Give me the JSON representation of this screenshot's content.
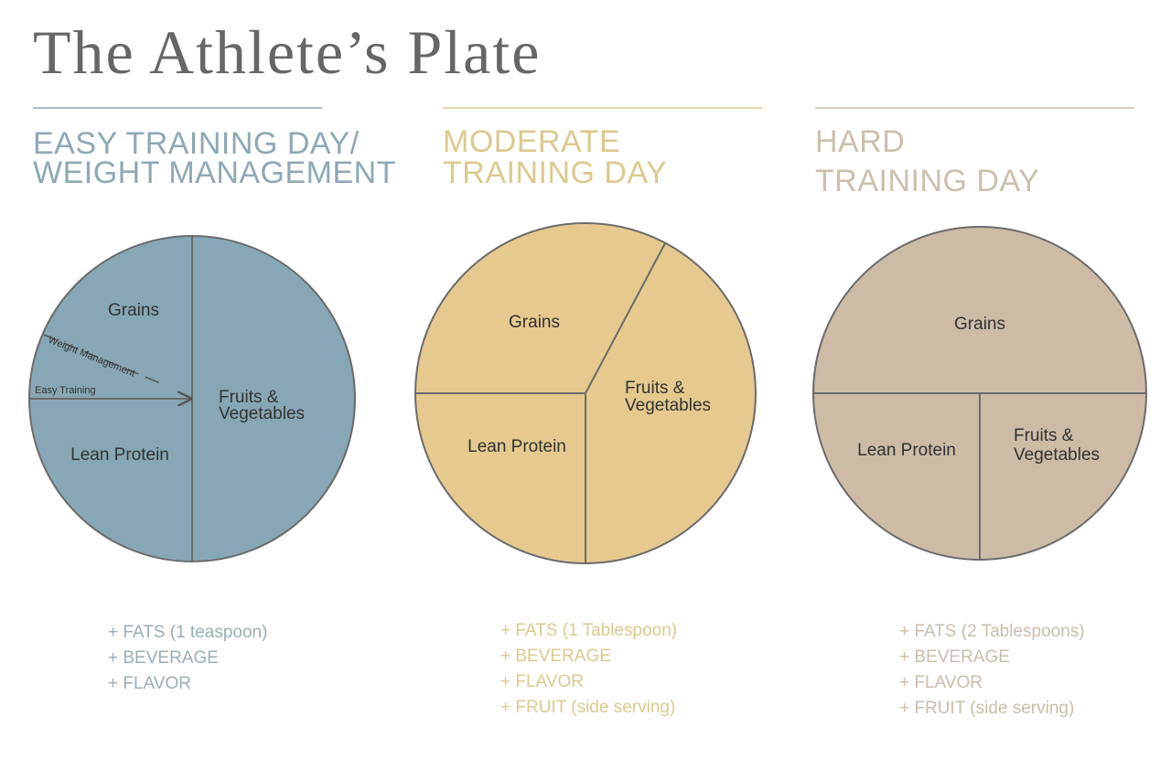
{
  "title": "The Athlete’s Plate",
  "plates": [
    {
      "heading": [
        "EASY TRAINING DAY/",
        "WEIGHT MANAGEMENT"
      ],
      "labels": {
        "grains": "Grains",
        "fruits": [
          "Fruits &",
          "Vegetables"
        ],
        "protein": "Lean Protein"
      },
      "notes": [
        "Weight Management",
        "Easy Training"
      ],
      "extras": [
        "+ FATS (1 teaspoon)",
        "+ BEVERAGE",
        "+ FLAVOR"
      ]
    },
    {
      "heading": [
        "MODERATE",
        "TRAINING DAY"
      ],
      "labels": {
        "grains": "Grains",
        "fruits": [
          "Fruits &",
          "Vegetables"
        ],
        "protein": "Lean Protein"
      },
      "extras": [
        "+ FATS (1 Tablespoon)",
        "+ BEVERAGE",
        "+ FLAVOR",
        "+ FRUIT (side serving)"
      ]
    },
    {
      "heading": [
        "HARD",
        "TRAINING DAY"
      ],
      "labels": {
        "grains": "Grains",
        "fruits": [
          "Fruits &",
          "Vegetables"
        ],
        "protein": "Lean Protein"
      },
      "extras": [
        "+ FATS (2 Tablespoons)",
        "+ BEVERAGE",
        "+ FLAVOR",
        "+ FRUIT (side serving)"
      ]
    }
  ]
}
